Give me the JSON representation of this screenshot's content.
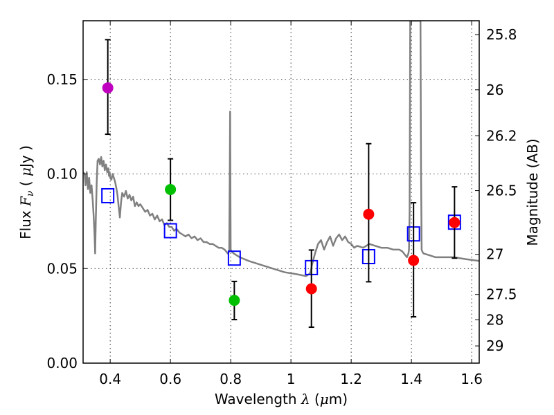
{
  "chart_data": {
    "type": "scatter",
    "title": "",
    "xlabel": "Wavelength  λ (μm)",
    "xlabel_parts": {
      "prefix": "Wavelength  ",
      "symbol": "λ",
      "suffix_open": " (",
      "unit_symbol": "μ",
      "unit": "m)"
    },
    "ylabel": "Flux  Fν  ( μJy )",
    "ylabel_parts": {
      "prefix": "Flux  ",
      "symbol": "F",
      "subscript": "ν",
      "open": "  ( ",
      "unit_symbol": "μ",
      "unit": "Jy )"
    },
    "y2label": "Magnitude (AB)",
    "xlim": [
      0.31,
      1.625
    ],
    "ylim": [
      0.0,
      0.181
    ],
    "grid": true,
    "xticks": [
      {
        "value": 0.4,
        "label": "0.4"
      },
      {
        "value": 0.6,
        "label": "0.6"
      },
      {
        "value": 0.8,
        "label": "0.8"
      },
      {
        "value": 1.0,
        "label": "1"
      },
      {
        "value": 1.2,
        "label": "1.2"
      },
      {
        "value": 1.4,
        "label": "1.4"
      },
      {
        "value": 1.6,
        "label": "1.6"
      }
    ],
    "yticks": [
      {
        "value": 0.0,
        "label": "0.00"
      },
      {
        "value": 0.05,
        "label": "0.05"
      },
      {
        "value": 0.1,
        "label": "0.10"
      },
      {
        "value": 0.15,
        "label": "0.15"
      }
    ],
    "y2ticks": [
      {
        "label": "25.8",
        "flux": 0.1737
      },
      {
        "label": "26",
        "flux": 0.1445
      },
      {
        "label": "26.2",
        "flux": 0.1202
      },
      {
        "label": "26.5",
        "flux": 0.0912
      },
      {
        "label": "27",
        "flux": 0.0575
      },
      {
        "label": "27.5",
        "flux": 0.0363
      },
      {
        "label": "28",
        "flux": 0.0229
      },
      {
        "label": "29",
        "flux": 0.0091
      }
    ],
    "series": [
      {
        "name": "model-spectrum",
        "kind": "line",
        "color": "#808080",
        "x": [
          0.31,
          0.315,
          0.318,
          0.322,
          0.326,
          0.33,
          0.334,
          0.338,
          0.342,
          0.345,
          0.348,
          0.35,
          0.352,
          0.355,
          0.358,
          0.362,
          0.366,
          0.37,
          0.374,
          0.378,
          0.382,
          0.386,
          0.39,
          0.394,
          0.396,
          0.398,
          0.4,
          0.404,
          0.408,
          0.412,
          0.416,
          0.42,
          0.424,
          0.428,
          0.432,
          0.436,
          0.44,
          0.446,
          0.452,
          0.458,
          0.464,
          0.47,
          0.476,
          0.482,
          0.488,
          0.494,
          0.5,
          0.508,
          0.516,
          0.524,
          0.532,
          0.54,
          0.548,
          0.556,
          0.564,
          0.572,
          0.58,
          0.588,
          0.596,
          0.604,
          0.612,
          0.62,
          0.63,
          0.64,
          0.65,
          0.66,
          0.67,
          0.68,
          0.69,
          0.7,
          0.71,
          0.72,
          0.73,
          0.74,
          0.75,
          0.76,
          0.77,
          0.78,
          0.79,
          0.795,
          0.797,
          0.798,
          0.8,
          0.803,
          0.81,
          0.83,
          0.86,
          0.9,
          0.94,
          0.98,
          1.02,
          1.05,
          1.06,
          1.065,
          1.07,
          1.08,
          1.09,
          1.1,
          1.11,
          1.12,
          1.13,
          1.14,
          1.15,
          1.16,
          1.17,
          1.18,
          1.19,
          1.2,
          1.21,
          1.22,
          1.24,
          1.26,
          1.28,
          1.3,
          1.32,
          1.34,
          1.36,
          1.37,
          1.38,
          1.385,
          1.39,
          1.392,
          1.394,
          1.396,
          1.398,
          1.4,
          1.402,
          1.404,
          1.406,
          1.408,
          1.43,
          1.432,
          1.434,
          1.436,
          1.44,
          1.46,
          1.48,
          1.5,
          1.54,
          1.58,
          1.625
        ],
        "y": [
          0.101,
          0.1,
          0.094,
          0.101,
          0.092,
          0.098,
          0.09,
          0.094,
          0.086,
          0.078,
          0.068,
          0.058,
          0.075,
          0.095,
          0.107,
          0.108,
          0.105,
          0.109,
          0.104,
          0.107,
          0.102,
          0.105,
          0.101,
          0.103,
          0.099,
          0.101,
          0.098,
          0.097,
          0.1,
          0.098,
          0.096,
          0.093,
          0.089,
          0.083,
          0.077,
          0.085,
          0.09,
          0.088,
          0.091,
          0.087,
          0.089,
          0.086,
          0.088,
          0.083,
          0.085,
          0.083,
          0.084,
          0.082,
          0.08,
          0.081,
          0.078,
          0.079,
          0.076,
          0.078,
          0.075,
          0.076,
          0.073,
          0.074,
          0.072,
          0.072,
          0.07,
          0.071,
          0.069,
          0.068,
          0.067,
          0.068,
          0.066,
          0.067,
          0.065,
          0.066,
          0.064,
          0.064,
          0.063,
          0.063,
          0.062,
          0.061,
          0.061,
          0.06,
          0.058,
          0.059,
          0.1,
          0.133,
          0.06,
          0.059,
          0.058,
          0.056,
          0.054,
          0.052,
          0.05,
          0.048,
          0.047,
          0.046,
          0.047,
          0.048,
          0.052,
          0.058,
          0.063,
          0.065,
          0.06,
          0.064,
          0.067,
          0.062,
          0.066,
          0.068,
          0.065,
          0.067,
          0.064,
          0.063,
          0.061,
          0.062,
          0.061,
          0.063,
          0.062,
          0.061,
          0.061,
          0.06,
          0.06,
          0.059,
          0.057,
          0.056,
          0.058,
          0.06,
          0.08,
          0.181,
          0.181,
          0.181,
          0.181,
          0.181,
          0.181,
          0.181,
          0.181,
          0.1,
          0.06,
          0.059,
          0.058,
          0.057,
          0.056,
          0.056,
          0.056,
          0.055,
          0.054
        ]
      },
      {
        "name": "model-photometry",
        "kind": "open-square",
        "color": "#0000ff",
        "x": [
          0.392,
          0.6,
          0.812,
          1.068,
          1.258,
          1.407,
          1.543
        ],
        "y": [
          0.0885,
          0.07,
          0.0555,
          0.0505,
          0.0563,
          0.0683,
          0.0745
        ]
      },
      {
        "name": "observed-uv",
        "kind": "filled-circle",
        "color": "#bf00bf",
        "x": [
          0.392
        ],
        "y": [
          0.1455
        ],
        "yerr_low": [
          0.121
        ],
        "yerr_high": [
          0.171
        ]
      },
      {
        "name": "observed-optical",
        "kind": "filled-circle",
        "color": "#00bf00",
        "x": [
          0.6,
          0.812
        ],
        "y": [
          0.0918,
          0.0332
        ],
        "yerr_low": [
          0.0755,
          0.023
        ],
        "yerr_high": [
          0.108,
          0.0432
        ]
      },
      {
        "name": "observed-nir",
        "kind": "filled-circle",
        "color": "#ff0000",
        "x": [
          1.068,
          1.258,
          1.407,
          1.543
        ],
        "y": [
          0.0393,
          0.0787,
          0.0543,
          0.0743
        ],
        "yerr_low": [
          0.019,
          0.043,
          0.0245,
          0.0555
        ],
        "yerr_high": [
          0.0598,
          0.116,
          0.0848,
          0.0932
        ]
      }
    ]
  }
}
